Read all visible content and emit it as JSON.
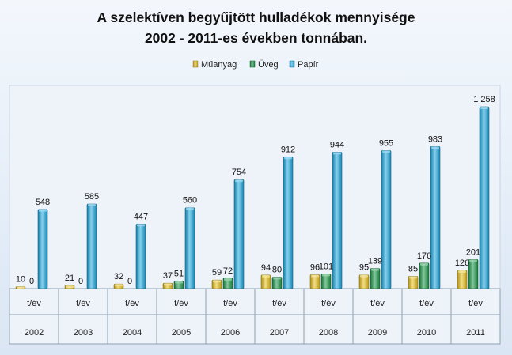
{
  "chart_data": {
    "type": "bar",
    "title_lines": [
      "A szelektíven begyűjtött hulladékok mennyisége",
      "2002 - 2011-es években tonnában."
    ],
    "categories": [
      "2002",
      "2003",
      "2004",
      "2005",
      "2006",
      "2007",
      "2008",
      "2009",
      "2010",
      "2011"
    ],
    "unit_label": "t/év",
    "series": [
      {
        "name": "Műanyag",
        "color": "#e8c21e",
        "values": [
          10,
          21,
          32,
          37,
          59,
          94,
          96,
          95,
          85,
          126
        ],
        "labels": [
          "10",
          "21",
          "32",
          "37",
          "59",
          "94",
          "96",
          "95",
          "85",
          "126"
        ]
      },
      {
        "name": "Üveg",
        "color": "#1e9a4a",
        "values": [
          0,
          0,
          0,
          51,
          72,
          80,
          101,
          139,
          176,
          201
        ],
        "labels": [
          "0",
          "0",
          "0",
          "51",
          "72",
          "80",
          "101",
          "139",
          "176",
          "201"
        ]
      },
      {
        "name": "Papír",
        "color": "#1fa9e0",
        "values": [
          548,
          585,
          447,
          560,
          754,
          912,
          944,
          955,
          983,
          1258
        ],
        "labels": [
          "548",
          "585",
          "447",
          "560",
          "754",
          "912",
          "944",
          "955",
          "983",
          "1 258"
        ]
      }
    ],
    "ylim": [
      0,
      1400
    ],
    "legend": "top",
    "grid": false
  }
}
